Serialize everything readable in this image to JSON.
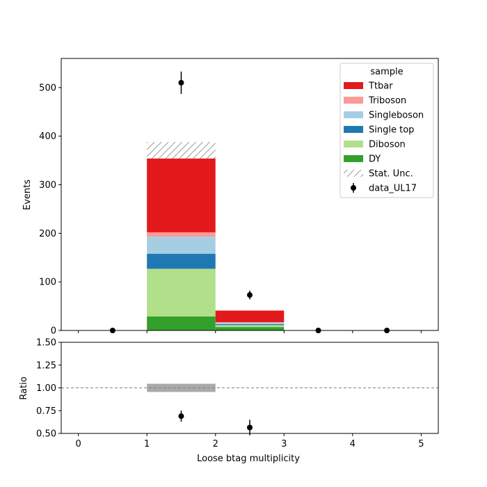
{
  "chart_data": [
    {
      "type": "bar",
      "panel": "main",
      "stacked": true,
      "bin_edges": [
        0,
        1,
        2,
        3,
        4,
        5
      ],
      "x_tick_labels": [
        "0",
        "1",
        "2",
        "3",
        "4",
        "5"
      ],
      "xlim": [
        -0.25,
        5.25
      ],
      "ylim": [
        0,
        560
      ],
      "y_ticks": [
        0,
        100,
        200,
        300,
        400,
        500
      ],
      "y_tick_labels": [
        "0",
        "100",
        "200",
        "300",
        "400",
        "500"
      ],
      "ylabel": "Events",
      "series": [
        {
          "name": "DY",
          "color": "#33a02c",
          "values": [
            0,
            29,
            7,
            0,
            0
          ]
        },
        {
          "name": "Diboson",
          "color": "#b2df8a",
          "values": [
            0,
            98,
            4,
            0,
            0
          ]
        },
        {
          "name": "Single top",
          "color": "#1f78b4",
          "values": [
            0,
            31,
            2,
            0,
            0
          ]
        },
        {
          "name": "Singleboson",
          "color": "#a6cee3",
          "values": [
            0,
            35,
            3,
            0,
            0
          ]
        },
        {
          "name": "Triboson",
          "color": "#fb9a99",
          "values": [
            0,
            9,
            1,
            0,
            0
          ]
        },
        {
          "name": "Ttbar",
          "color": "#e31a1c",
          "values": [
            0,
            152,
            24,
            0,
            0
          ]
        }
      ],
      "stat_unc": {
        "name": "Stat. Unc.",
        "low": [
          0,
          354,
          41,
          0,
          0
        ],
        "high": [
          0,
          388,
          41,
          0,
          0
        ]
      },
      "data_points": {
        "name": "data_UL17",
        "x": [
          0.5,
          1.5,
          2.5,
          3.5,
          4.5
        ],
        "y": [
          0,
          510,
          73,
          0,
          0
        ],
        "err": [
          0,
          23,
          9,
          0,
          0
        ]
      },
      "legend": {
        "title": "sample",
        "placement": "top-right",
        "entries": [
          "Ttbar",
          "Triboson",
          "Singleboson",
          "Single top",
          "Diboson",
          "DY",
          "Stat. Unc.",
          "data_UL17"
        ]
      }
    },
    {
      "type": "scatter",
      "panel": "ratio",
      "xlim": [
        -0.25,
        5.25
      ],
      "ylim": [
        0.5,
        1.5
      ],
      "y_ticks": [
        0.5,
        0.75,
        1.0,
        1.25,
        1.5
      ],
      "y_tick_labels": [
        "0.50",
        "0.75",
        "1.00",
        "1.25",
        "1.50"
      ],
      "x_ticks": [
        0,
        1,
        2,
        3,
        4,
        5
      ],
      "x_tick_labels": [
        "0",
        "1",
        "2",
        "3",
        "4",
        "5"
      ],
      "xlabel": "Loose btag multiplicity",
      "ylabel": "Ratio",
      "reference_line": 1.0,
      "unc_band": {
        "x0": 1,
        "x1": 2,
        "low": 0.955,
        "high": 1.045
      },
      "points": {
        "x": [
          1.5,
          2.5
        ],
        "y": [
          0.69,
          0.565
        ],
        "err": [
          0.06,
          0.085
        ]
      }
    }
  ]
}
